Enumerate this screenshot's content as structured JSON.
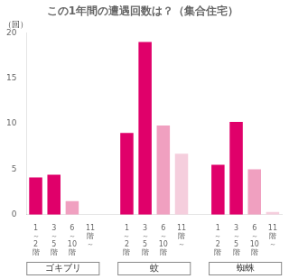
{
  "chart_data": {
    "type": "bar",
    "title": "この1年間の遭遇回数は？（集合住宅）",
    "ylabel": "（回）",
    "categories": [
      "1\n～\n2\n階",
      "3\n～\n5\n階",
      "6\n～\n10\n階",
      "11\n階\n～"
    ],
    "series": [
      {
        "name": "ゴキブリ",
        "values": [
          4.1,
          4.4,
          1.5,
          0.0
        ]
      },
      {
        "name": "蚊",
        "values": [
          9.0,
          19.0,
          9.8,
          6.7
        ]
      },
      {
        "name": "蜘蛛",
        "values": [
          5.5,
          10.2,
          5.0,
          0.3
        ]
      }
    ],
    "colors": [
      "#e0006a",
      "#e0006a",
      "#f0a0c0",
      "#f5cedd"
    ],
    "ylim": [
      0,
      20
    ],
    "yticks": [
      0,
      5,
      10,
      15,
      20
    ],
    "grid": false
  }
}
